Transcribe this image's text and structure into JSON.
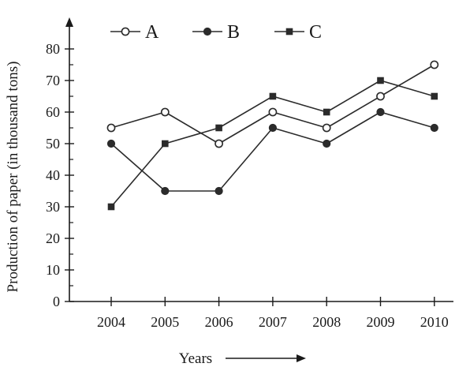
{
  "chart_data": {
    "type": "line",
    "title": "",
    "xlabel": "Years",
    "ylabel": "Production of paper (in thousand tons)",
    "categories": [
      "2004",
      "2005",
      "2006",
      "2007",
      "2008",
      "2009",
      "2010"
    ],
    "ylim": [
      0,
      80
    ],
    "yticks": [
      "0",
      "10",
      "20",
      "30",
      "40",
      "50",
      "60",
      "70",
      "80"
    ],
    "grid": false,
    "legend_position": "top",
    "series": [
      {
        "name": "A",
        "marker": "open-circle",
        "values": [
          55,
          60,
          50,
          60,
          55,
          65,
          75
        ]
      },
      {
        "name": "B",
        "marker": "filled-circle",
        "values": [
          50,
          35,
          35,
          55,
          50,
          60,
          55
        ]
      },
      {
        "name": "C",
        "marker": "filled-square",
        "values": [
          30,
          50,
          55,
          65,
          60,
          70,
          65
        ]
      }
    ],
    "colors": {
      "line": "#2b2b2b",
      "axis": "#1a1a1a"
    }
  }
}
